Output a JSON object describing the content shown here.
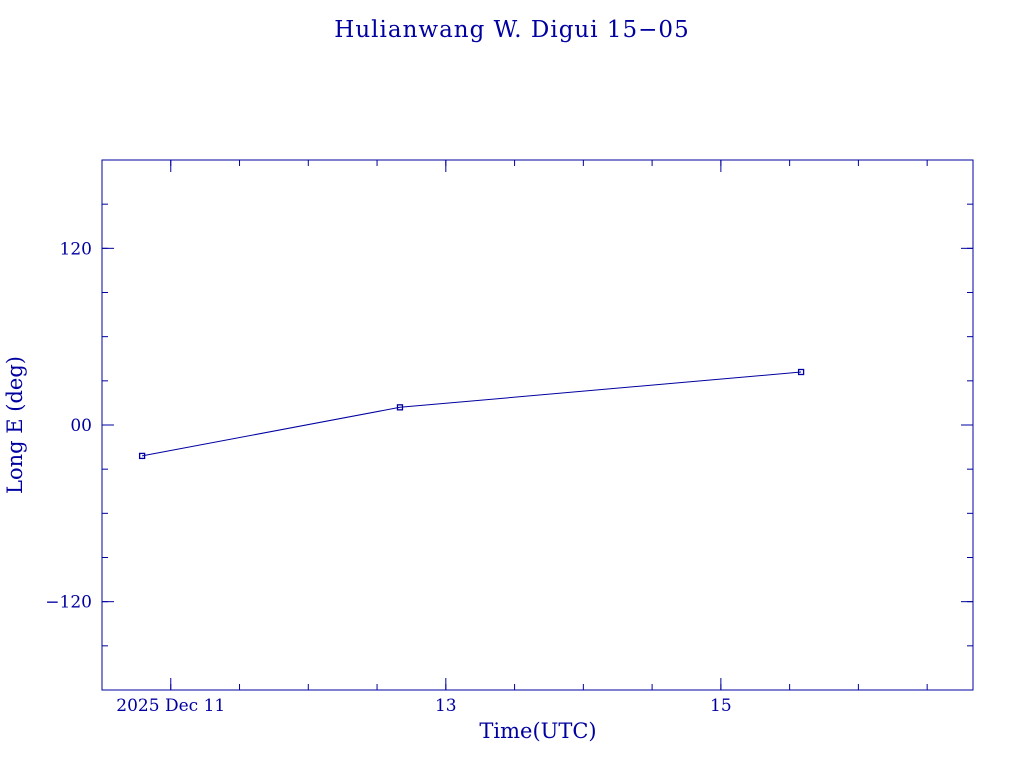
{
  "chart_data": {
    "type": "line",
    "title": "Hulianwang W. Digui 15−05",
    "xlabel": "Time(UTC)",
    "ylabel": "Long E (deg)",
    "x_start": "2025-12-10T00:00:00Z",
    "xlim": [
      "2025-12-10T12:00:00Z",
      "2025-12-16T20:00:00Z"
    ],
    "ylim": [
      -180,
      180
    ],
    "x_ticks": [
      {
        "x": "2025-12-11T00:00:00Z",
        "label": "2025 Dec 11"
      },
      {
        "x": "2025-12-13T00:00:00Z",
        "label": "13"
      },
      {
        "x": "2025-12-15T00:00:00Z",
        "label": "15"
      }
    ],
    "y_ticks": [
      {
        "value": 120,
        "label": "120"
      },
      {
        "value": 0,
        "label": "00"
      },
      {
        "value": -120,
        "label": "−120"
      }
    ],
    "series": [
      {
        "color": "#0000a0",
        "points": [
          {
            "x": "2025-12-10T19:00:00Z",
            "y": -21
          },
          {
            "x": "2025-12-12T16:00:00Z",
            "y": 12
          },
          {
            "x": "2025-12-15T14:00:00Z",
            "y": 36
          }
        ]
      }
    ],
    "grid": false,
    "legend": "none"
  }
}
